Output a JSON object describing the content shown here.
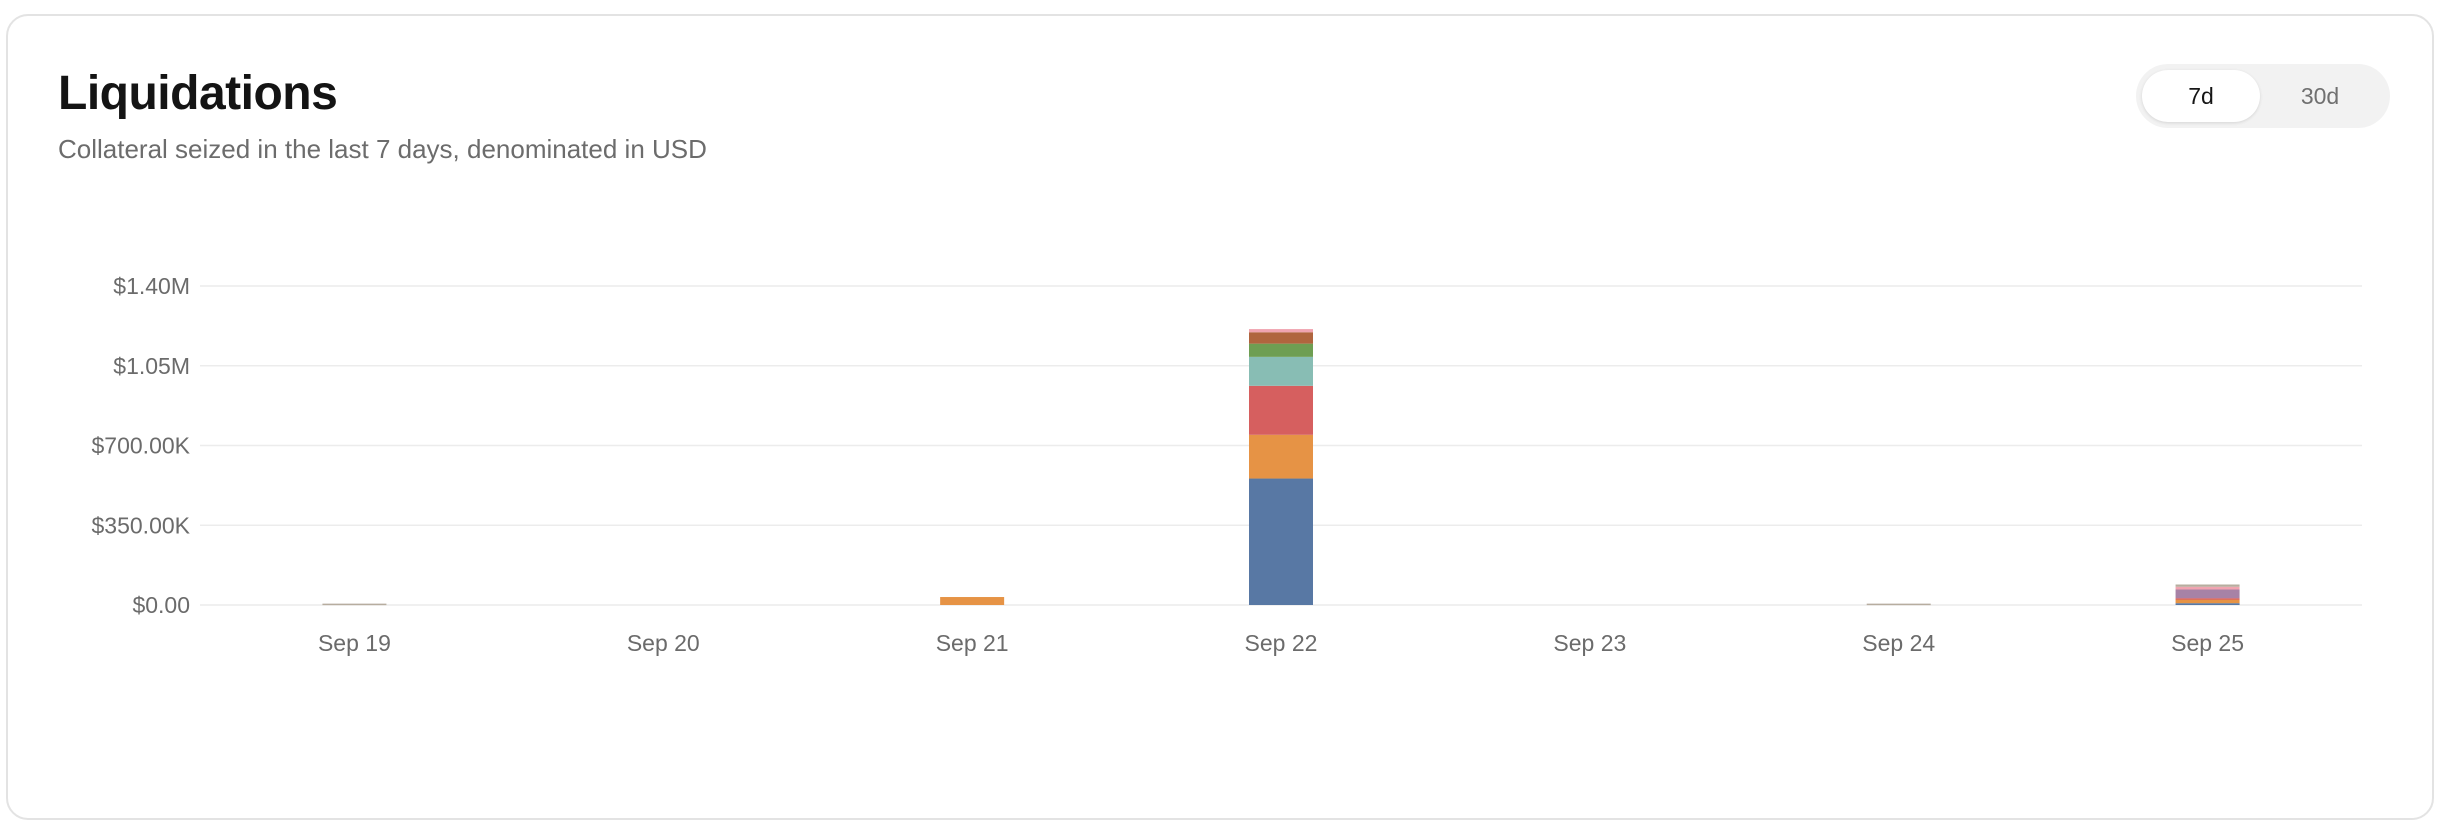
{
  "header": {
    "title": "Liquidations",
    "subtitle": "Collateral seized in the last 7 days, denominated in USD"
  },
  "range_toggle": {
    "options": [
      {
        "label": "7d",
        "active": true
      },
      {
        "label": "30d",
        "active": false
      }
    ]
  },
  "chart_data": {
    "type": "bar",
    "stacked": true,
    "categories": [
      "Sep 19",
      "Sep 20",
      "Sep 21",
      "Sep 22",
      "Sep 23",
      "Sep 24",
      "Sep 25"
    ],
    "y_ticks": [
      0,
      350000,
      700000,
      1050000,
      1400000
    ],
    "y_tick_labels": [
      "$0.00",
      "$350.00K",
      "$700.00K",
      "$1.05M",
      "$1.40M"
    ],
    "ylim": [
      0,
      1400000
    ],
    "grid": true,
    "series": [
      {
        "color": "#5878a4",
        "values": [
          0,
          0,
          0,
          555000,
          0,
          0,
          8000
        ]
      },
      {
        "color": "#e69345",
        "values": [
          0,
          0,
          35000,
          192000,
          0,
          0,
          16000
        ]
      },
      {
        "color": "#d65f5f",
        "values": [
          0,
          0,
          0,
          215000,
          0,
          0,
          6000
        ]
      },
      {
        "color": "#88bdb4",
        "values": [
          0,
          0,
          0,
          127000,
          0,
          0,
          0
        ]
      },
      {
        "color": "#6e9e52",
        "values": [
          0,
          0,
          0,
          58000,
          0,
          0,
          0
        ]
      },
      {
        "color": "#b0653e",
        "values": [
          0,
          0,
          0,
          50000,
          0,
          0,
          0
        ]
      },
      {
        "color": "#a782a6",
        "values": [
          0,
          0,
          0,
          0,
          0,
          0,
          38000
        ]
      },
      {
        "color": "#f0a4b0",
        "values": [
          0,
          0,
          0,
          14000,
          0,
          0,
          12000
        ]
      },
      {
        "color": "#b7ad9f",
        "values": [
          6000,
          0,
          0,
          0,
          0,
          6000,
          10000
        ]
      }
    ]
  }
}
